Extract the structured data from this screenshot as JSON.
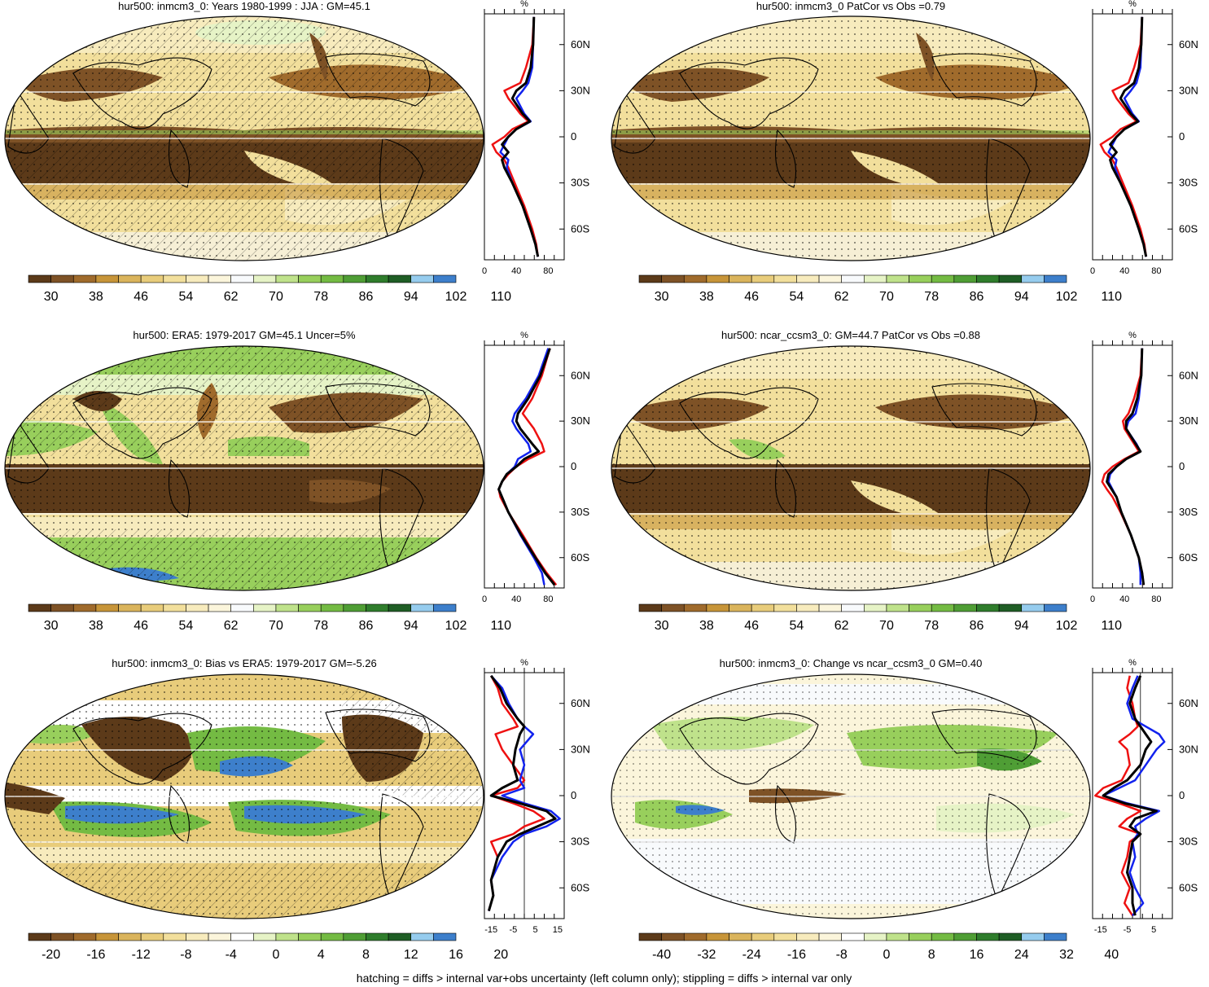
{
  "colors": {
    "scale_full": [
      "#5c3a19",
      "#7e5226",
      "#a06b2c",
      "#c79539",
      "#dab45c",
      "#e8cc7b",
      "#f2df9c",
      "#f7ebbd",
      "#fbf5db",
      "#f8fafc",
      "#e6f3c6",
      "#bfe28b",
      "#98cf5c",
      "#74bb43",
      "#4f9e35",
      "#2f7d2c",
      "#1f5e25",
      "#96ccee",
      "#3d7fcb"
    ],
    "scale_diff": [
      "#5c3a19",
      "#7e5226",
      "#a06b2c",
      "#c79539",
      "#dab45c",
      "#e8cc7b",
      "#f2df9c",
      "#f7ebbd",
      "#fbf5db",
      "#ffffff",
      "#e6f3c6",
      "#bfe28b",
      "#98cf5c",
      "#74bb43",
      "#4f9e35",
      "#2f7d2c",
      "#1f5e25",
      "#96ccee",
      "#3d7fcb"
    ],
    "line_red": "#ee1111",
    "line_blue": "#1122ee",
    "line_black": "#000000"
  },
  "footnote": "hatching = diffs > internal var+obs uncertainty (left column only); stippling = diffs > internal var only",
  "panels": [
    {
      "title": "hur500: inmcm3_0: Years 1980-1999 : JJA : GM=45.1",
      "cb_labels": [
        "30",
        "38",
        "46",
        "54",
        "62",
        "70",
        "78",
        "86",
        "94",
        "102",
        "110"
      ],
      "zonal_xticks": [
        "0",
        "40",
        "80"
      ],
      "zonal_unit": "%",
      "lat_labels": [
        "60N",
        "30N",
        "0",
        "30S",
        "60S"
      ]
    },
    {
      "title": "hur500: inmcm3_0 PatCor vs Obs =0.79",
      "cb_labels": [
        "30",
        "38",
        "46",
        "54",
        "62",
        "70",
        "78",
        "86",
        "94",
        "102",
        "110"
      ],
      "zonal_xticks": [
        "0",
        "40",
        "80"
      ],
      "zonal_unit": "%",
      "lat_labels": [
        "60N",
        "30N",
        "0",
        "30S",
        "60S"
      ]
    },
    {
      "title": "hur500: ERA5: 1979-2017 GM=45.1 Uncer=5%",
      "cb_labels": [
        "30",
        "38",
        "46",
        "54",
        "62",
        "70",
        "78",
        "86",
        "94",
        "102",
        "110"
      ],
      "zonal_xticks": [
        "0",
        "40",
        "80"
      ],
      "zonal_unit": "%",
      "lat_labels": [
        "60N",
        "30N",
        "0",
        "30S",
        "60S"
      ]
    },
    {
      "title": "hur500: ncar_ccsm3_0: GM=44.7 PatCor vs Obs =0.88",
      "cb_labels": [
        "30",
        "38",
        "46",
        "54",
        "62",
        "70",
        "78",
        "86",
        "94",
        "102",
        "110"
      ],
      "zonal_xticks": [
        "0",
        "40",
        "80"
      ],
      "zonal_unit": "%",
      "lat_labels": [
        "60N",
        "30N",
        "0",
        "30S",
        "60S"
      ]
    },
    {
      "title": "hur500: inmcm3_0: Bias vs ERA5: 1979-2017 GM=-5.26",
      "cb_labels": [
        "-20",
        "-16",
        "-12",
        "-8",
        "-4",
        "0",
        "4",
        "8",
        "12",
        "16",
        "20"
      ],
      "zonal_xticks": [
        "-15",
        "-5",
        "5",
        "15"
      ],
      "zonal_unit": "%",
      "lat_labels": [
        "60N",
        "30N",
        "0",
        "30S",
        "60S"
      ]
    },
    {
      "title": "hur500: inmcm3_0: Change vs ncar_ccsm3_0 GM=0.40",
      "cb_labels": [
        "-40",
        "-32",
        "-24",
        "-16",
        "-8",
        "0",
        "8",
        "16",
        "24",
        "32",
        "40"
      ],
      "zonal_xticks": [
        "-15",
        "-5",
        "5"
      ],
      "zonal_unit": "%",
      "lat_labels": [
        "60N",
        "30N",
        "0",
        "30S",
        "60S"
      ]
    }
  ],
  "chart_data": [
    {
      "type": "line",
      "title": "hur500: inmcm3_0: Years 1980-1999 : JJA : GM=45.1",
      "x_unit": "%",
      "xlim": [
        0,
        100
      ],
      "ylim": [
        -80,
        80
      ],
      "series": [
        {
          "color": "red",
          "lat": [
            78,
            60,
            45,
            35,
            30,
            25,
            15,
            10,
            5,
            0,
            -5,
            -10,
            -15,
            -20,
            -30,
            -45,
            -60,
            -70,
            -78
          ],
          "x": [
            62,
            60,
            52,
            45,
            25,
            30,
            45,
            55,
            35,
            25,
            10,
            15,
            25,
            30,
            38,
            50,
            60,
            65,
            67
          ]
        },
        {
          "color": "blue",
          "lat": [
            78,
            60,
            45,
            35,
            30,
            25,
            15,
            10,
            5,
            0,
            -5,
            -10,
            -15,
            -20,
            -30,
            -45,
            -60,
            -70,
            -78
          ],
          "x": [
            62,
            61,
            60,
            55,
            48,
            40,
            50,
            58,
            40,
            30,
            25,
            20,
            30,
            28,
            35,
            48,
            58,
            64,
            67
          ]
        },
        {
          "color": "black",
          "lat": [
            78,
            60,
            45,
            35,
            30,
            25,
            15,
            10,
            5,
            0,
            -5,
            -10,
            -15,
            -20,
            -30,
            -45,
            -60,
            -70,
            -78
          ],
          "x": [
            62,
            61,
            58,
            52,
            40,
            35,
            48,
            57,
            40,
            30,
            22,
            30,
            22,
            25,
            35,
            48,
            58,
            64,
            67
          ]
        }
      ]
    },
    {
      "type": "line",
      "title": "hur500: inmcm3_0 PatCor vs Obs =0.79",
      "x_unit": "%",
      "xlim": [
        0,
        100
      ],
      "ylim": [
        -80,
        80
      ],
      "series": [
        {
          "color": "red",
          "lat": [
            78,
            60,
            45,
            35,
            30,
            25,
            15,
            10,
            5,
            0,
            -5,
            -10,
            -15,
            -20,
            -30,
            -45,
            -60,
            -70,
            -78
          ],
          "x": [
            62,
            60,
            52,
            45,
            25,
            30,
            45,
            55,
            35,
            25,
            10,
            15,
            25,
            30,
            38,
            50,
            60,
            65,
            67
          ]
        },
        {
          "color": "blue",
          "lat": [
            78,
            60,
            45,
            35,
            30,
            25,
            15,
            10,
            5,
            0,
            -5,
            -10,
            -15,
            -20,
            -30,
            -45,
            -60,
            -70,
            -78
          ],
          "x": [
            62,
            61,
            60,
            55,
            48,
            40,
            50,
            58,
            40,
            30,
            25,
            20,
            30,
            28,
            35,
            48,
            58,
            64,
            67
          ]
        },
        {
          "color": "black",
          "lat": [
            78,
            60,
            45,
            35,
            30,
            25,
            15,
            10,
            5,
            0,
            -5,
            -10,
            -15,
            -20,
            -30,
            -45,
            -60,
            -70,
            -78
          ],
          "x": [
            62,
            61,
            58,
            52,
            40,
            35,
            48,
            57,
            40,
            30,
            22,
            30,
            22,
            25,
            35,
            48,
            58,
            64,
            67
          ]
        }
      ]
    },
    {
      "type": "line",
      "title": "hur500: ERA5: 1979-2017 GM=45.1 Uncer=5%",
      "x_unit": "%",
      "xlim": [
        0,
        100
      ],
      "ylim": [
        -80,
        80
      ],
      "series": [
        {
          "color": "red",
          "lat": [
            78,
            60,
            45,
            35,
            30,
            25,
            15,
            10,
            5,
            0,
            -5,
            -10,
            -15,
            -20,
            -30,
            -45,
            -60,
            -70,
            -78
          ],
          "x": [
            82,
            72,
            60,
            48,
            55,
            62,
            72,
            75,
            55,
            40,
            30,
            22,
            18,
            20,
            30,
            48,
            65,
            78,
            90
          ]
        },
        {
          "color": "blue",
          "lat": [
            78,
            60,
            45,
            35,
            30,
            25,
            15,
            10,
            5,
            0,
            -5,
            -10,
            -15,
            -20,
            -30,
            -45,
            -60,
            -70,
            -78
          ],
          "x": [
            80,
            68,
            52,
            38,
            35,
            40,
            55,
            58,
            42,
            38,
            28,
            22,
            18,
            22,
            30,
            45,
            62,
            72,
            75
          ]
        },
        {
          "color": "black",
          "lat": [
            78,
            60,
            45,
            35,
            30,
            25,
            15,
            10,
            5,
            0,
            -5,
            -10,
            -15,
            -20,
            -30,
            -45,
            -60,
            -70,
            -78
          ],
          "x": [
            82,
            70,
            55,
            42,
            40,
            45,
            60,
            68,
            50,
            40,
            28,
            22,
            18,
            22,
            30,
            46,
            64,
            76,
            88
          ]
        }
      ]
    },
    {
      "type": "line",
      "title": "hur500: ncar_ccsm3_0: GM=44.7 PatCor vs Obs =0.88",
      "x_unit": "%",
      "xlim": [
        0,
        100
      ],
      "ylim": [
        -80,
        80
      ],
      "series": [
        {
          "color": "red",
          "lat": [
            78,
            60,
            45,
            35,
            30,
            25,
            15,
            10,
            5,
            0,
            -5,
            -10,
            -15,
            -20,
            -30,
            -45,
            -60,
            -70,
            -78
          ],
          "x": [
            62,
            60,
            52,
            45,
            38,
            40,
            52,
            58,
            40,
            25,
            15,
            12,
            18,
            25,
            35,
            48,
            58,
            62,
            64
          ]
        },
        {
          "color": "blue",
          "lat": [
            78,
            60,
            45,
            35,
            30,
            25,
            15,
            10,
            5,
            0,
            -5,
            -10,
            -15,
            -20,
            -30,
            -45,
            -60,
            -70,
            -78
          ],
          "x": [
            62,
            61,
            58,
            54,
            45,
            42,
            55,
            60,
            42,
            30,
            22,
            20,
            25,
            30,
            36,
            48,
            58,
            60,
            60
          ]
        },
        {
          "color": "black",
          "lat": [
            78,
            60,
            45,
            35,
            30,
            25,
            15,
            10,
            5,
            0,
            -5,
            -10,
            -15,
            -20,
            -30,
            -45,
            -60,
            -70,
            -78
          ],
          "x": [
            62,
            61,
            56,
            50,
            42,
            42,
            54,
            60,
            42,
            30,
            20,
            18,
            24,
            30,
            36,
            48,
            58,
            62,
            64
          ]
        }
      ]
    },
    {
      "type": "line",
      "title": "hur500: inmcm3_0: Bias vs ERA5: 1979-2017 GM=-5.26",
      "x_unit": "%",
      "xlim": [
        -18,
        18
      ],
      "ylim": [
        -80,
        80
      ],
      "series": [
        {
          "color": "red",
          "lat": [
            78,
            70,
            60,
            50,
            45,
            40,
            30,
            20,
            10,
            5,
            0,
            -5,
            -10,
            -15,
            -20,
            -25,
            -30,
            -40,
            -55,
            -65,
            -75
          ],
          "x": [
            -15,
            -12,
            -10,
            -5,
            -3,
            -13,
            -10,
            -5,
            0,
            -3,
            -15,
            -5,
            4,
            9,
            0,
            -5,
            -15,
            -12,
            -15,
            -14,
            -16
          ]
        },
        {
          "color": "blue",
          "lat": [
            78,
            70,
            60,
            50,
            45,
            40,
            30,
            20,
            10,
            5,
            0,
            -5,
            -10,
            -15,
            -20,
            -25,
            -30,
            -40,
            -55,
            -65,
            -75
          ],
          "x": [
            -15,
            -10,
            -7,
            -3,
            0,
            4,
            -2,
            0,
            -2,
            0,
            -10,
            0,
            12,
            16,
            10,
            0,
            -5,
            -10,
            -15,
            -14,
            -16
          ]
        },
        {
          "color": "black",
          "lat": [
            78,
            70,
            60,
            50,
            45,
            40,
            30,
            20,
            10,
            5,
            0,
            -5,
            -10,
            -15,
            -20,
            -25,
            -30,
            -40,
            -55,
            -65,
            -75
          ],
          "x": [
            -15,
            -11,
            -8,
            -3,
            0,
            -2,
            -4,
            -5,
            -3,
            -10,
            -15,
            -2,
            10,
            14,
            6,
            -2,
            -8,
            -12,
            -15,
            -14,
            -16
          ]
        }
      ]
    },
    {
      "type": "line",
      "title": "hur500: inmcm3_0: Change vs ncar_ccsm3_0 GM=0.40",
      "x_unit": "%",
      "xlim": [
        -18,
        12
      ],
      "ylim": [
        -80,
        80
      ],
      "series": [
        {
          "color": "red",
          "lat": [
            78,
            70,
            60,
            50,
            45,
            40,
            35,
            30,
            20,
            10,
            5,
            0,
            -5,
            -10,
            -15,
            -20,
            -25,
            -30,
            -40,
            -50,
            -60,
            -70,
            -78
          ],
          "x": [
            -4,
            -5,
            -3,
            -2,
            -1,
            -4,
            -8,
            -5,
            -4,
            -7,
            -14,
            -17,
            -8,
            0,
            -5,
            -8,
            0,
            -4,
            -5,
            -7,
            -4,
            -6,
            -3
          ]
        },
        {
          "color": "blue",
          "lat": [
            78,
            70,
            60,
            50,
            45,
            40,
            35,
            30,
            20,
            10,
            5,
            0,
            -5,
            -10,
            -15,
            -20,
            -25,
            -30,
            -40,
            -50,
            -60,
            -70,
            -78
          ],
          "x": [
            -1,
            -3,
            -5,
            -3,
            2,
            7,
            9,
            6,
            2,
            -2,
            -8,
            -14,
            -5,
            7,
            2,
            -2,
            -1,
            -3,
            -2,
            -4,
            -2,
            1,
            -3
          ]
        },
        {
          "color": "black",
          "lat": [
            78,
            70,
            60,
            50,
            45,
            40,
            35,
            30,
            20,
            10,
            5,
            0,
            -5,
            -10,
            -15,
            -20,
            -25,
            -30,
            -40,
            -50,
            -60,
            -70,
            -78
          ],
          "x": [
            0,
            -2,
            -4,
            -2,
            0,
            2,
            4,
            2,
            0,
            -5,
            -10,
            -14,
            -6,
            6,
            -2,
            -4,
            0,
            -3,
            -4,
            -5,
            -3,
            -3,
            -2
          ]
        }
      ]
    }
  ]
}
